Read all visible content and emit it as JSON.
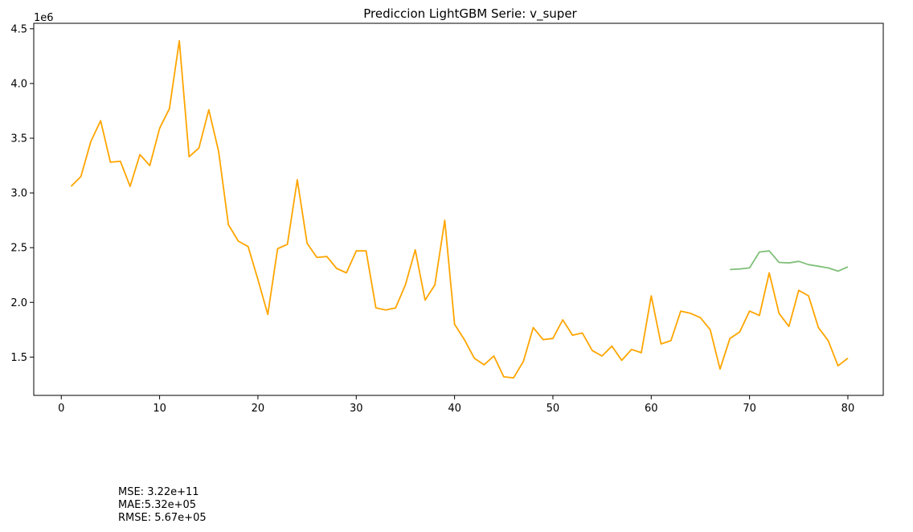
{
  "chart_data": {
    "type": "line",
    "title": "Prediccion LightGBM Serie: v_super",
    "xlabel": "",
    "ylabel": "",
    "y_offset_label": "1e6",
    "xlim": [
      -2.8,
      83.6
    ],
    "ylim": [
      1150000,
      4550000
    ],
    "xticks": [
      0,
      10,
      20,
      30,
      40,
      50,
      60,
      70,
      80
    ],
    "yticks": [
      1.5,
      2.0,
      2.5,
      3.0,
      3.5,
      4.0,
      4.5
    ],
    "grid": false,
    "legend": "none",
    "series": [
      {
        "color": "#ffa500",
        "x": [
          1,
          2,
          3,
          4,
          5,
          6,
          7,
          8,
          9,
          10,
          11,
          12,
          13,
          14,
          15,
          16,
          17,
          18,
          19,
          20,
          21,
          22,
          23,
          24,
          25,
          26,
          27,
          28,
          29,
          30,
          31,
          32,
          33,
          34,
          35,
          36,
          37,
          38,
          39,
          40,
          41,
          42,
          43,
          44,
          45,
          46,
          47,
          48,
          49,
          50,
          51,
          52,
          53,
          54,
          55,
          56,
          57,
          58,
          59,
          60,
          61,
          62,
          63,
          64,
          65,
          66,
          67,
          68,
          69,
          70,
          71,
          72,
          73,
          74,
          75,
          76,
          77,
          78,
          79,
          80
        ],
        "y": [
          3060000,
          3150000,
          3470000,
          3660000,
          3280000,
          3290000,
          3060000,
          3350000,
          3250000,
          3590000,
          3770000,
          4390000,
          3330000,
          3410000,
          3760000,
          3380000,
          2710000,
          2560000,
          2510000,
          2210000,
          1890000,
          2490000,
          2530000,
          3120000,
          2540000,
          2410000,
          2420000,
          2310000,
          2270000,
          2470000,
          2470000,
          1950000,
          1930000,
          1950000,
          2160000,
          2480000,
          2020000,
          2160000,
          2750000,
          1800000,
          1660000,
          1490000,
          1430000,
          1510000,
          1320000,
          1310000,
          1460000,
          1770000,
          1660000,
          1670000,
          1840000,
          1700000,
          1720000,
          1560000,
          1510000,
          1600000,
          1470000,
          1570000,
          1540000,
          2060000,
          1620000,
          1650000,
          1920000,
          1900000,
          1860000,
          1750000,
          1390000,
          1670000,
          1730000,
          1920000,
          1880000,
          2270000,
          1900000,
          1780000,
          2110000,
          2060000,
          1770000,
          1650000,
          1420000,
          1490000
        ]
      },
      {
        "color": "#81c07a",
        "x": [
          68,
          69,
          70,
          71,
          72,
          73,
          74,
          75,
          76,
          77,
          78,
          79,
          80
        ],
        "y": [
          2300000,
          2305000,
          2315000,
          2460000,
          2470000,
          2365000,
          2360000,
          2375000,
          2345000,
          2330000,
          2315000,
          2285000,
          2325000
        ]
      }
    ]
  },
  "metrics": {
    "mse": "MSE: 3.22e+11",
    "mae": "MAE:5.32e+05",
    "rmse": "RMSE: 5.67e+05"
  }
}
